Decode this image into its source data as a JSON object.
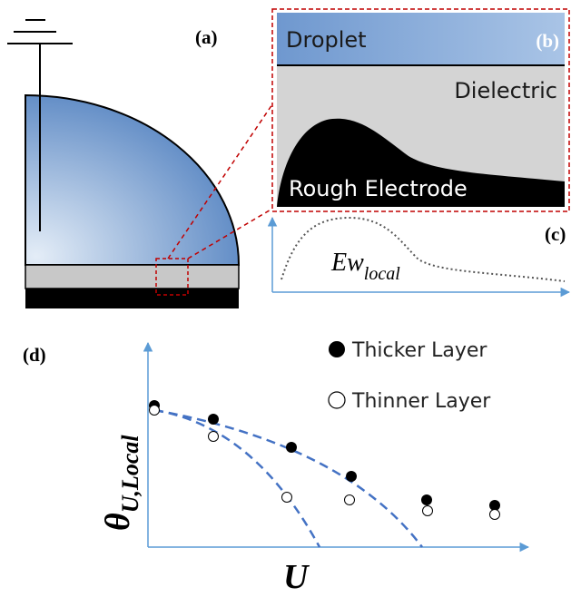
{
  "panels": {
    "a": {
      "label": "(a)"
    },
    "b": {
      "label": "(b)",
      "droplet": "Droplet",
      "dielectric": "Dielectric",
      "electrode": "Rough Electrode"
    },
    "c": {
      "label": "(c)",
      "curve_label": "Ew",
      "curve_label_subscript": "local"
    },
    "d": {
      "label": "(d)",
      "legend": [
        "Thicker Layer",
        "Thinner Layer"
      ],
      "y_label": "θ",
      "y_label_subscript": "U,Local",
      "x_label": "U"
    }
  }
}
